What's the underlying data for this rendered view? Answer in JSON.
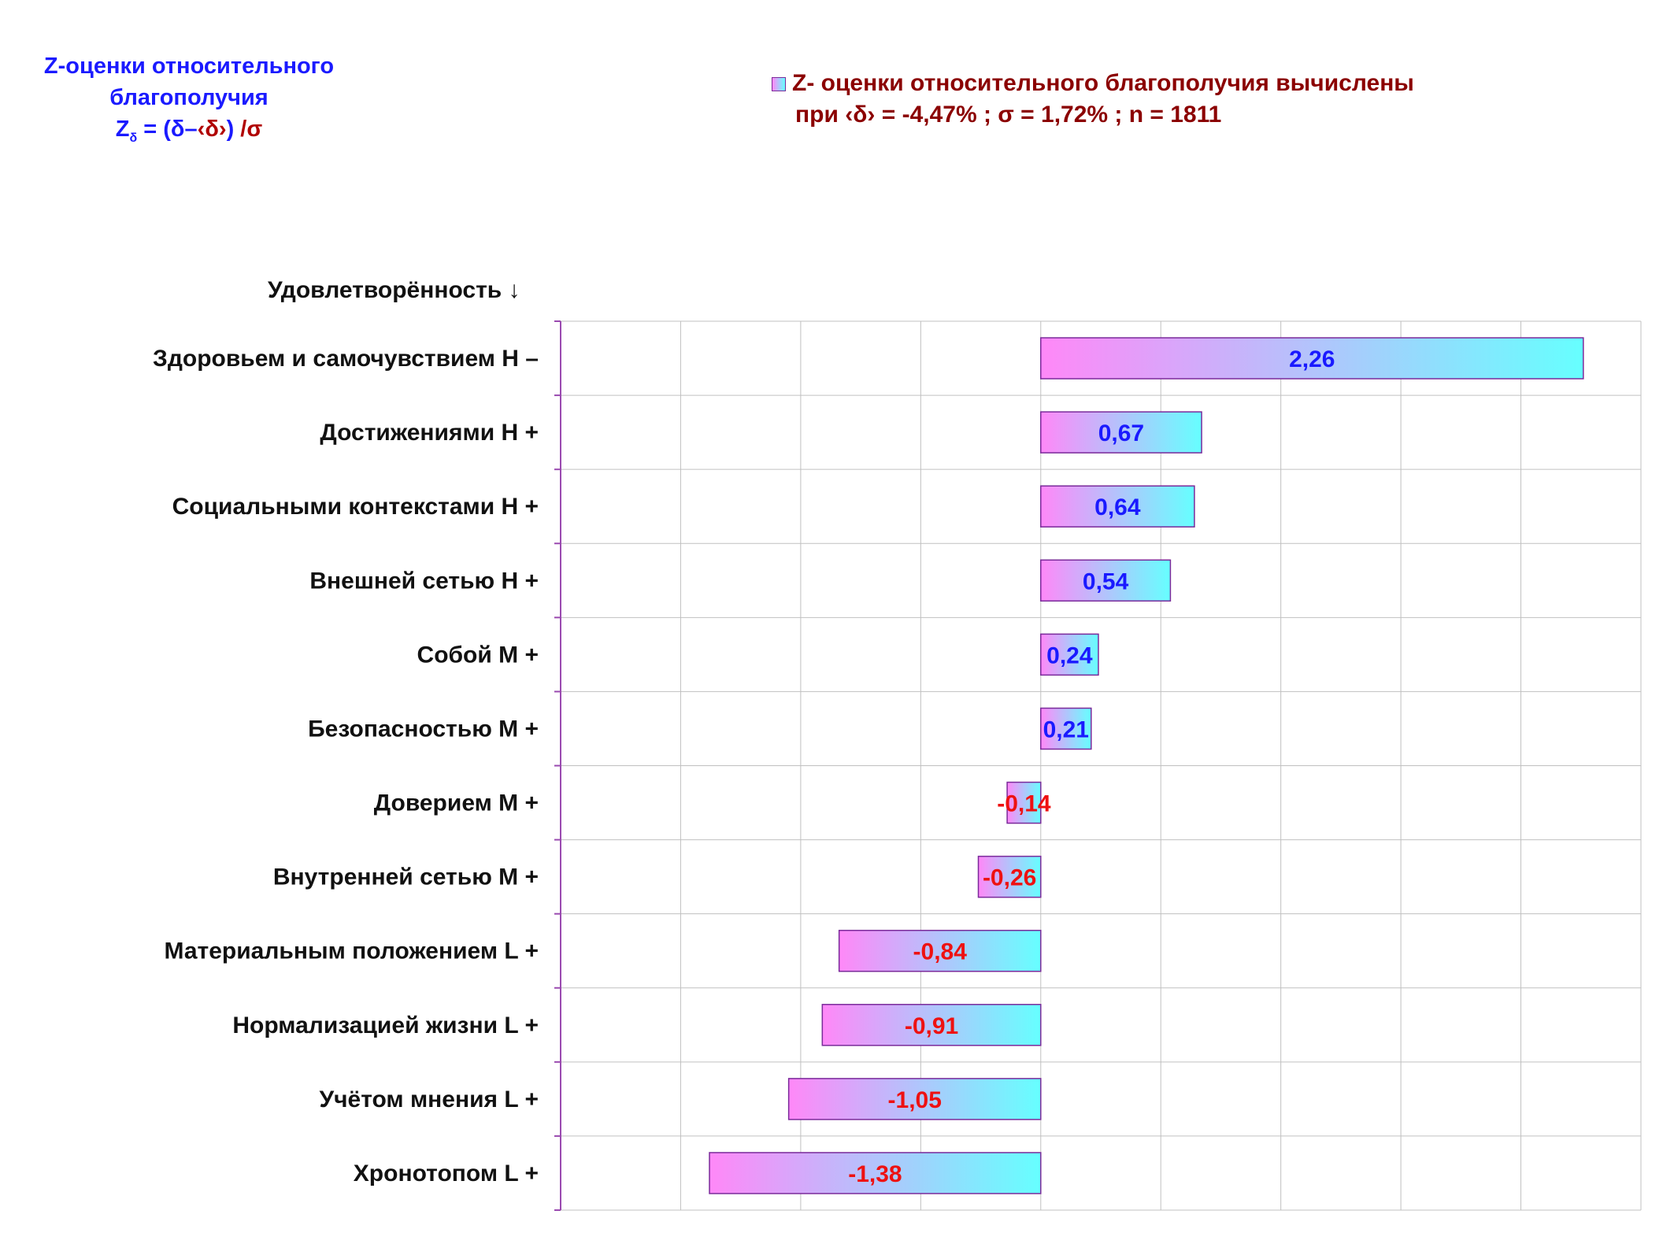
{
  "formula": {
    "line1": "Z-оценки  относительного",
    "line2": "благополучия",
    "z": "Z",
    "z_sub": "δ",
    "eq_open": " = (δ",
    "minus": "–",
    "mean": "‹δ›",
    "eq_close": ")",
    "div": "/σ"
  },
  "legend": {
    "line1": "Z- оценки относительного благополучия вычислены",
    "line2": "при ‹δ› = -4,47% ; σ = 1,72% ; n = 1811"
  },
  "colors": {
    "bar_left": "#ff88f8",
    "bar_right": "#66ffff",
    "bar_border": "#7a2a9a",
    "grid": "#c0c0c0",
    "axis": "#9a4ab0",
    "positive_label": "#1a1aff",
    "negative_label": "#ee1111"
  },
  "chart_data": {
    "type": "bar",
    "orientation": "horizontal",
    "ylabel": "Удовлетворённость ↓",
    "xlim": [
      -2.0,
      2.5
    ],
    "grid": true,
    "legend_position": "top-right",
    "categories": [
      "Здоровьем и самочувствием  H –",
      "Достижениями  H +",
      "Социальными контекстами  H +",
      "Внешней сетью  H +",
      "Собой  M +",
      "Безопасностью  M +",
      "Доверием  M +",
      "Внутренней сетью  M +",
      "Материальным положением  L +",
      "Нормализацией жизни  L +",
      "Учётом мнения  L +",
      "Хронотопом  L +"
    ],
    "values": [
      2.26,
      0.67,
      0.64,
      0.54,
      0.24,
      0.21,
      -0.14,
      -0.26,
      -0.84,
      -0.91,
      -1.05,
      -1.38
    ],
    "value_labels": [
      "2,26",
      "0,67",
      "0,64",
      "0,54",
      "0,24",
      "0,21",
      "-0,14",
      "-0,26",
      "-0,84",
      "-0,91",
      "-1,05",
      "-1,38"
    ]
  }
}
